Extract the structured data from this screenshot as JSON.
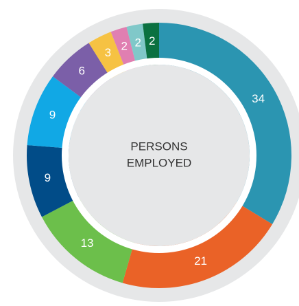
{
  "chart_data": {
    "type": "donut",
    "center_label": [
      "PERSONS",
      "EMPLOYED"
    ],
    "values": [
      34,
      21,
      13,
      9,
      9,
      6,
      3,
      2,
      2,
      2
    ],
    "colors": [
      "#2b95b1",
      "#ea6227",
      "#6cbf4b",
      "#014c88",
      "#11a8e5",
      "#7b5fa8",
      "#f6c243",
      "#e07fb1",
      "#80c8c9",
      "#0b7141"
    ]
  }
}
